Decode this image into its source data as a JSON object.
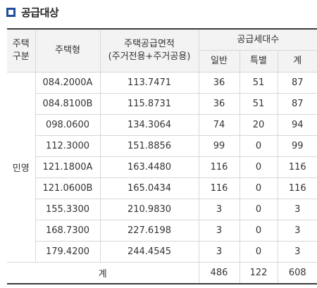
{
  "section": {
    "title": "공급대상"
  },
  "table": {
    "headers": {
      "type_group": "주택\n구분",
      "house_type": "주택형",
      "area_line1": "주택공급면적",
      "area_line2": "(주거전용+주거공용)",
      "supply_count": "공급세대수",
      "general": "일반",
      "special": "특별",
      "total": "계"
    },
    "group_label": "민영",
    "rows": [
      {
        "type": "084.2000A",
        "area": "113.7471",
        "general": "36",
        "special": "51",
        "total": "87"
      },
      {
        "type": "084.8100B",
        "area": "115.8731",
        "general": "36",
        "special": "51",
        "total": "87"
      },
      {
        "type": "098.0600",
        "area": "134.3064",
        "general": "74",
        "special": "20",
        "total": "94"
      },
      {
        "type": "112.3000",
        "area": "151.8856",
        "general": "99",
        "special": "0",
        "total": "99"
      },
      {
        "type": "121.1800A",
        "area": "163.4480",
        "general": "116",
        "special": "0",
        "total": "116"
      },
      {
        "type": "121.0600B",
        "area": "165.0434",
        "general": "116",
        "special": "0",
        "total": "116"
      },
      {
        "type": "155.3300",
        "area": "210.9830",
        "general": "3",
        "special": "0",
        "total": "3"
      },
      {
        "type": "168.7300",
        "area": "227.6198",
        "general": "3",
        "special": "0",
        "total": "3"
      },
      {
        "type": "179.4200",
        "area": "244.4545",
        "general": "3",
        "special": "0",
        "total": "3"
      }
    ],
    "summary": {
      "label": "계",
      "general": "486",
      "special": "122",
      "total": "608"
    }
  }
}
